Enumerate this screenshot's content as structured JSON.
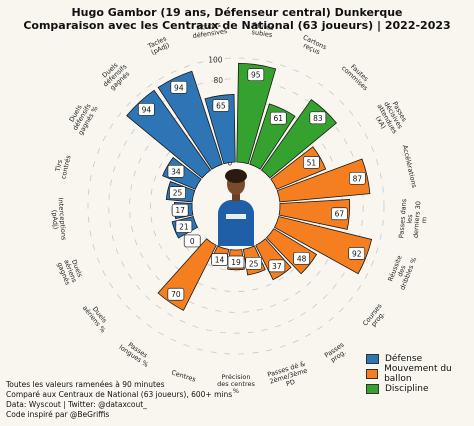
{
  "title": "Hugo Gambor (19 ans, Défenseur central) Dunkerque",
  "subtitle": "Comparaison avec les Centraux de National (63 joueurs) | 2022-2023",
  "footer": [
    "Toutes les valeurs ramenées à 90 minutes",
    "Comparé aux Centraux de National (63 joueurs), 600+ mins",
    "Data: Wyscout | Twitter: @dataxcout_",
    "Code inspiré par @BeGriffis"
  ],
  "legend": [
    {
      "label": "Défense",
      "color": "#2e75b6"
    },
    {
      "label": "Mouvement du ballon",
      "color": "#f57f20"
    },
    {
      "label": "Discipline",
      "color": "#35a230"
    }
  ],
  "player_photo": "player-photo",
  "chart_data": {
    "type": "polar-bar",
    "title": "Hugo Gambor (19 ans, Défenseur central) Dunkerque",
    "subtitle": "Comparaison avec les Centraux de National (63 joueurs) | 2022-2023",
    "rlim": [
      0,
      100
    ],
    "radial_ticks": [
      0,
      20,
      40,
      60,
      80,
      100
    ],
    "categories": [
      {
        "label": "Fautes subies",
        "value": 95,
        "group": "Discipline"
      },
      {
        "label": "Cartons reçus",
        "value": 61,
        "group": "Discipline"
      },
      {
        "label": "Fautes commises",
        "value": 83,
        "group": "Discipline"
      },
      {
        "label": "Passes décisives attendues (xA)",
        "value": 51,
        "group": "Mouvement du ballon"
      },
      {
        "label": "Accélérations",
        "value": 87,
        "group": "Mouvement du ballon"
      },
      {
        "label": "Passes dans les derniers 30 m",
        "value": 67,
        "group": "Mouvement du ballon"
      },
      {
        "label": "Réussite des dribbles %",
        "value": 92,
        "group": "Mouvement du ballon"
      },
      {
        "label": "Courses prog.",
        "value": 48,
        "group": "Mouvement du ballon"
      },
      {
        "label": "Passes prog.",
        "value": 37,
        "group": "Mouvement du ballon"
      },
      {
        "label": "Passes dé & 2ème/3ème PD",
        "value": 25,
        "group": "Mouvement du ballon"
      },
      {
        "label": "Précision des centres %",
        "value": 19,
        "group": "Mouvement du ballon"
      },
      {
        "label": "Centres",
        "value": 14,
        "group": "Mouvement du ballon"
      },
      {
        "label": "Passes longues %",
        "value": 70,
        "group": "Mouvement du ballon"
      },
      {
        "label": "Duels aériens %",
        "value": 0,
        "group": "Défense"
      },
      {
        "label": "Duels aériens gagnés",
        "value": 21,
        "group": "Défense"
      },
      {
        "label": "Interceptions (pAdj)",
        "value": 17,
        "group": "Défense"
      },
      {
        "label": "Tirs contrés",
        "value": 25,
        "group": "Défense"
      },
      {
        "label": "Duels défensifs gagnés %",
        "value": 34,
        "group": "Défense"
      },
      {
        "label": "Duels défensifs gagnés",
        "value": 94,
        "group": "Défense"
      },
      {
        "label": "Tacles (pAdj)",
        "value": 94,
        "group": "Défense"
      },
      {
        "label": "Actions défensives",
        "value": 65,
        "group": "Défense"
      }
    ]
  }
}
